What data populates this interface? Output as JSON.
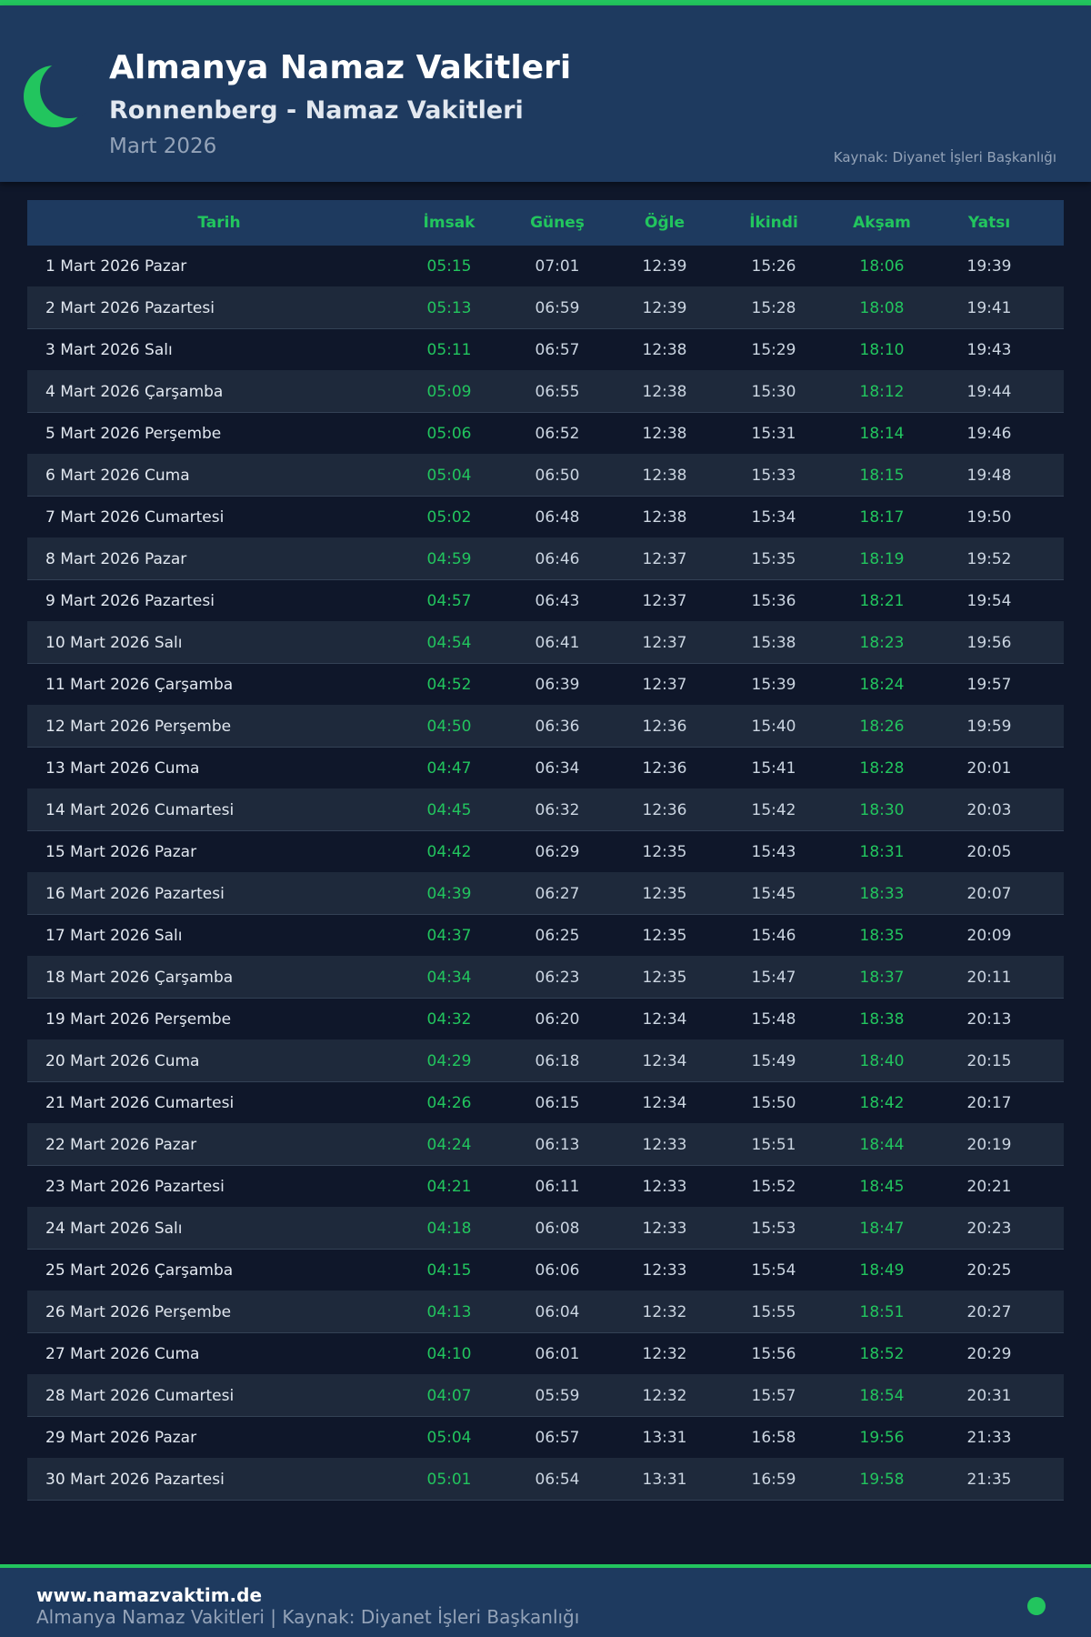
{
  "header": {
    "title": "Almanya Namaz Vakitleri",
    "subtitle": "Ronnenberg - Namaz Vakitleri",
    "month": "Mart 2026",
    "source": "Kaynak: Diyanet İşleri Başkanlığı",
    "icon": "crescent-moon-icon"
  },
  "colors": {
    "accent": "#22c55e",
    "header_bg": "#1e3a5f",
    "body_bg": "#0f172a"
  },
  "table": {
    "columns": [
      "Tarih",
      "İmsak",
      "Güneş",
      "Öğle",
      "İkindi",
      "Akşam",
      "Yatsı"
    ],
    "rows": [
      [
        "1 Mart 2026 Pazar",
        "05:15",
        "07:01",
        "12:39",
        "15:26",
        "18:06",
        "19:39"
      ],
      [
        "2 Mart 2026 Pazartesi",
        "05:13",
        "06:59",
        "12:39",
        "15:28",
        "18:08",
        "19:41"
      ],
      [
        "3 Mart 2026 Salı",
        "05:11",
        "06:57",
        "12:38",
        "15:29",
        "18:10",
        "19:43"
      ],
      [
        "4 Mart 2026 Çarşamba",
        "05:09",
        "06:55",
        "12:38",
        "15:30",
        "18:12",
        "19:44"
      ],
      [
        "5 Mart 2026 Perşembe",
        "05:06",
        "06:52",
        "12:38",
        "15:31",
        "18:14",
        "19:46"
      ],
      [
        "6 Mart 2026 Cuma",
        "05:04",
        "06:50",
        "12:38",
        "15:33",
        "18:15",
        "19:48"
      ],
      [
        "7 Mart 2026 Cumartesi",
        "05:02",
        "06:48",
        "12:38",
        "15:34",
        "18:17",
        "19:50"
      ],
      [
        "8 Mart 2026 Pazar",
        "04:59",
        "06:46",
        "12:37",
        "15:35",
        "18:19",
        "19:52"
      ],
      [
        "9 Mart 2026 Pazartesi",
        "04:57",
        "06:43",
        "12:37",
        "15:36",
        "18:21",
        "19:54"
      ],
      [
        "10 Mart 2026 Salı",
        "04:54",
        "06:41",
        "12:37",
        "15:38",
        "18:23",
        "19:56"
      ],
      [
        "11 Mart 2026 Çarşamba",
        "04:52",
        "06:39",
        "12:37",
        "15:39",
        "18:24",
        "19:57"
      ],
      [
        "12 Mart 2026 Perşembe",
        "04:50",
        "06:36",
        "12:36",
        "15:40",
        "18:26",
        "19:59"
      ],
      [
        "13 Mart 2026 Cuma",
        "04:47",
        "06:34",
        "12:36",
        "15:41",
        "18:28",
        "20:01"
      ],
      [
        "14 Mart 2026 Cumartesi",
        "04:45",
        "06:32",
        "12:36",
        "15:42",
        "18:30",
        "20:03"
      ],
      [
        "15 Mart 2026 Pazar",
        "04:42",
        "06:29",
        "12:35",
        "15:43",
        "18:31",
        "20:05"
      ],
      [
        "16 Mart 2026 Pazartesi",
        "04:39",
        "06:27",
        "12:35",
        "15:45",
        "18:33",
        "20:07"
      ],
      [
        "17 Mart 2026 Salı",
        "04:37",
        "06:25",
        "12:35",
        "15:46",
        "18:35",
        "20:09"
      ],
      [
        "18 Mart 2026 Çarşamba",
        "04:34",
        "06:23",
        "12:35",
        "15:47",
        "18:37",
        "20:11"
      ],
      [
        "19 Mart 2026 Perşembe",
        "04:32",
        "06:20",
        "12:34",
        "15:48",
        "18:38",
        "20:13"
      ],
      [
        "20 Mart 2026 Cuma",
        "04:29",
        "06:18",
        "12:34",
        "15:49",
        "18:40",
        "20:15"
      ],
      [
        "21 Mart 2026 Cumartesi",
        "04:26",
        "06:15",
        "12:34",
        "15:50",
        "18:42",
        "20:17"
      ],
      [
        "22 Mart 2026 Pazar",
        "04:24",
        "06:13",
        "12:33",
        "15:51",
        "18:44",
        "20:19"
      ],
      [
        "23 Mart 2026 Pazartesi",
        "04:21",
        "06:11",
        "12:33",
        "15:52",
        "18:45",
        "20:21"
      ],
      [
        "24 Mart 2026 Salı",
        "04:18",
        "06:08",
        "12:33",
        "15:53",
        "18:47",
        "20:23"
      ],
      [
        "25 Mart 2026 Çarşamba",
        "04:15",
        "06:06",
        "12:33",
        "15:54",
        "18:49",
        "20:25"
      ],
      [
        "26 Mart 2026 Perşembe",
        "04:13",
        "06:04",
        "12:32",
        "15:55",
        "18:51",
        "20:27"
      ],
      [
        "27 Mart 2026 Cuma",
        "04:10",
        "06:01",
        "12:32",
        "15:56",
        "18:52",
        "20:29"
      ],
      [
        "28 Mart 2026 Cumartesi",
        "04:07",
        "05:59",
        "12:32",
        "15:57",
        "18:54",
        "20:31"
      ],
      [
        "29 Mart 2026 Pazar",
        "05:04",
        "06:57",
        "13:31",
        "16:58",
        "19:56",
        "21:33"
      ],
      [
        "30 Mart 2026 Pazartesi",
        "05:01",
        "06:54",
        "13:31",
        "16:59",
        "19:58",
        "21:35"
      ]
    ]
  },
  "footer": {
    "site": "www.namazvaktim.de",
    "text": "Almanya Namaz Vakitleri | Kaynak: Diyanet İşleri Başkanlığı"
  }
}
